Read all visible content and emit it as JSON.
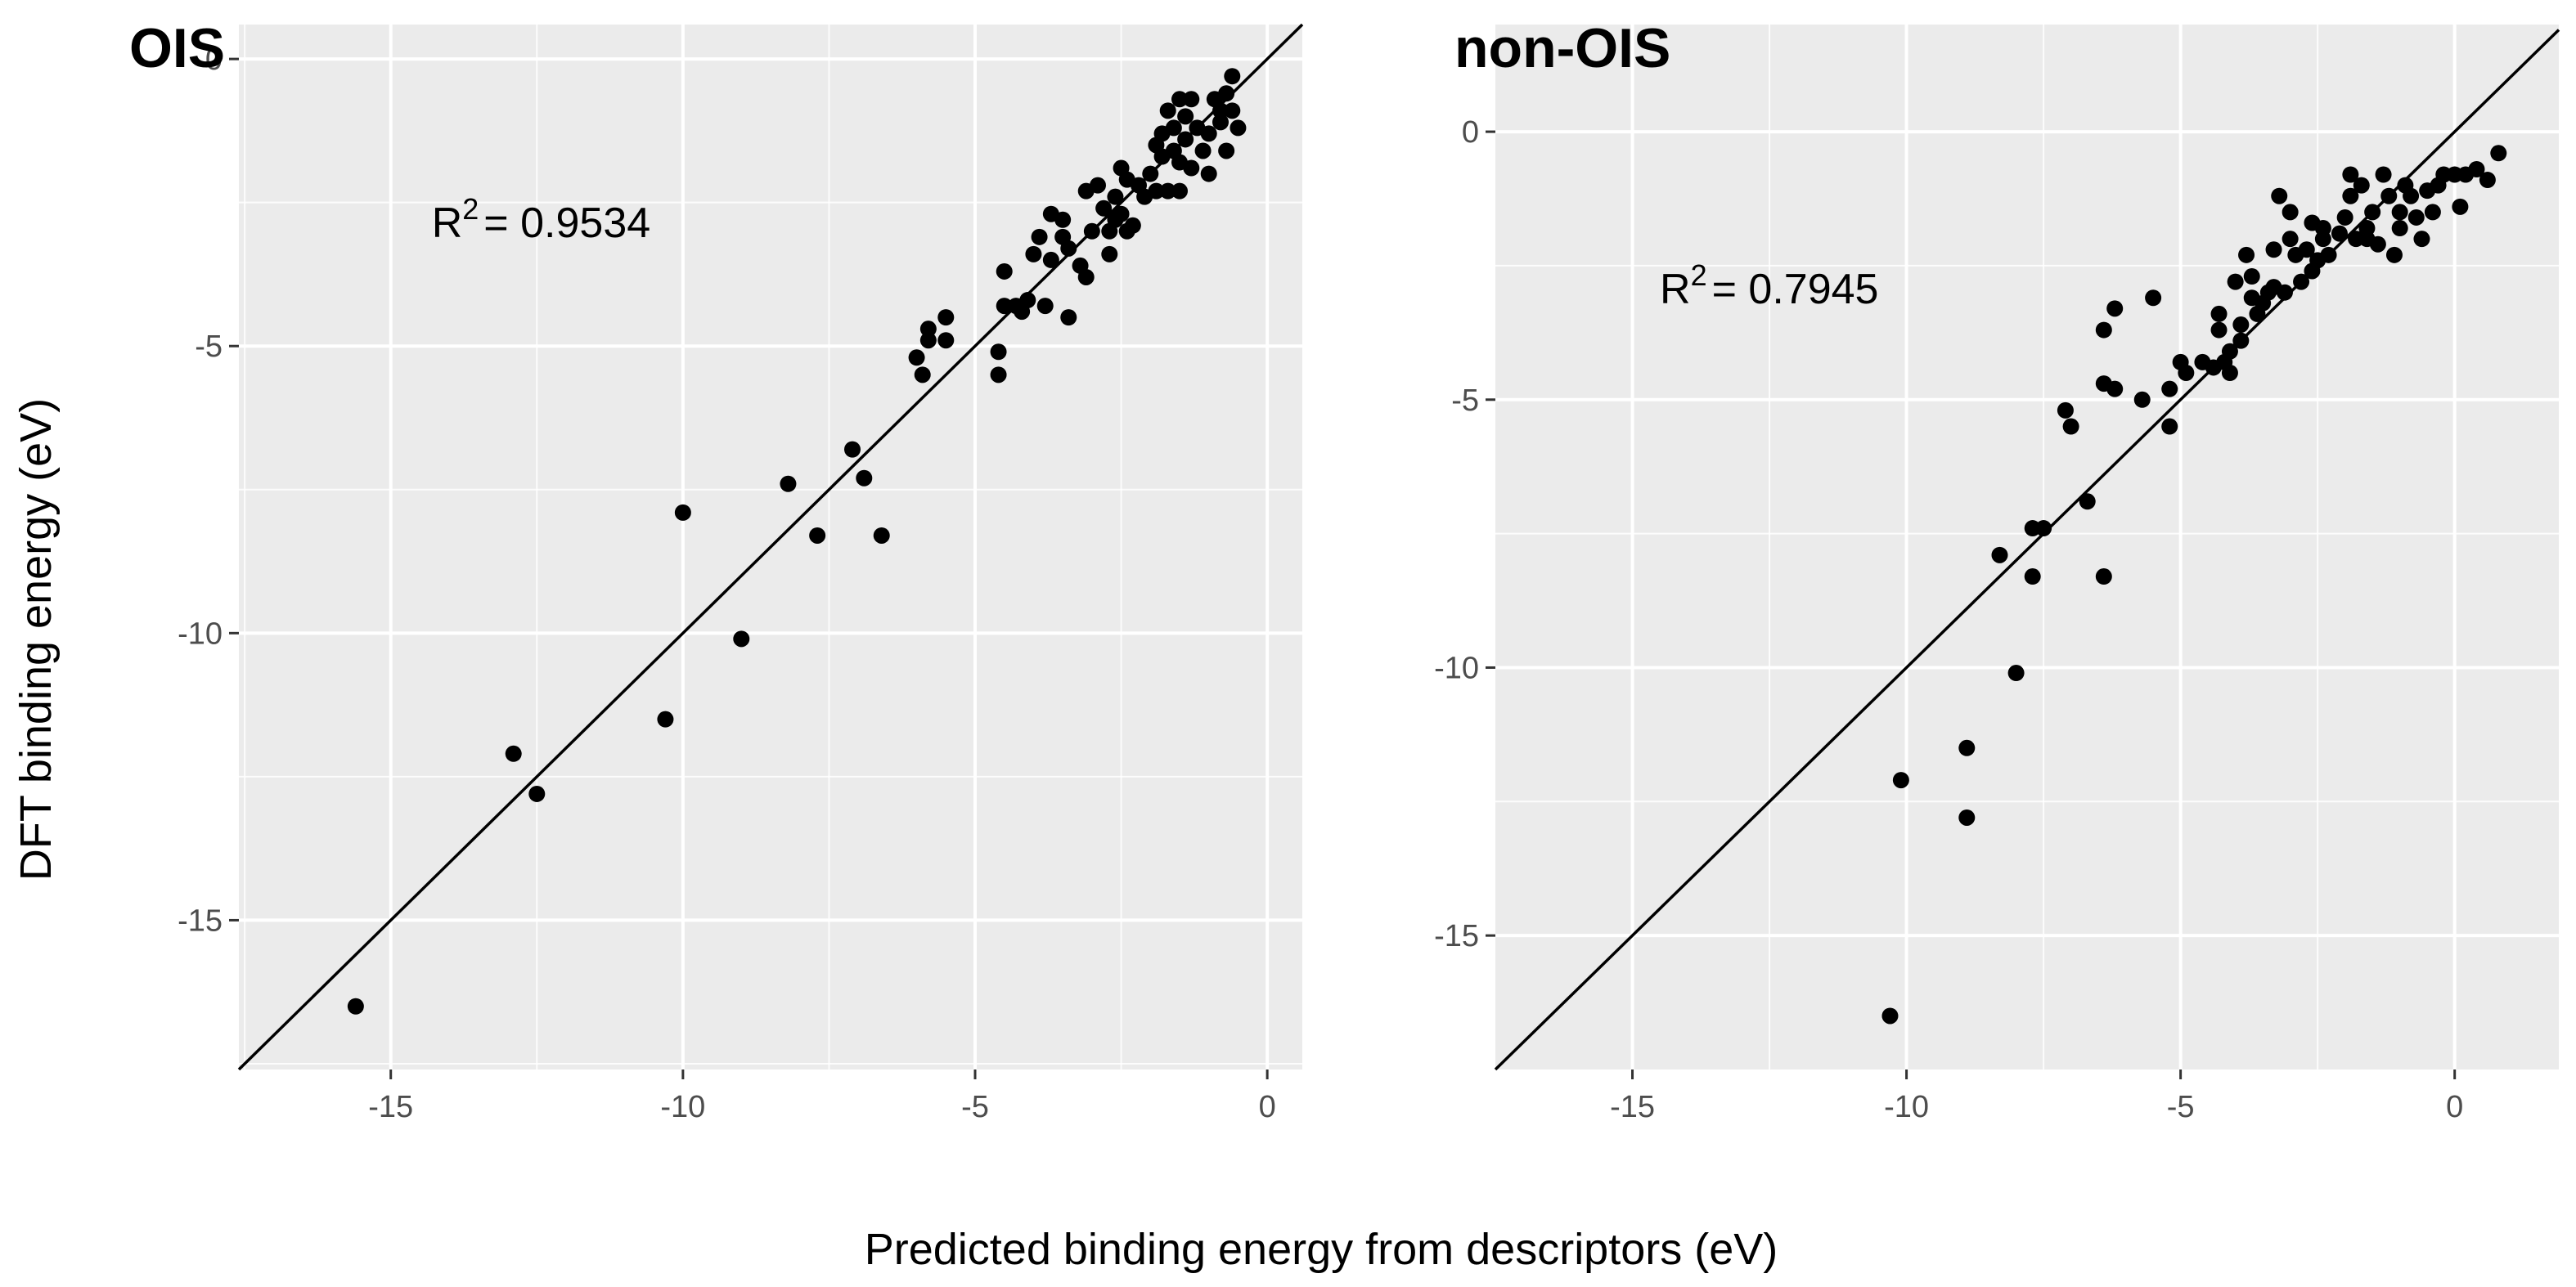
{
  "figure": {
    "ylabel": "DFT binding energy (eV)",
    "xlabel": "Predicted binding energy from descriptors (eV)"
  },
  "chart_data": [
    {
      "type": "scatter",
      "title": "OIS",
      "xlim": [
        -17.6,
        0.6
      ],
      "ylim": [
        -17.6,
        0.6
      ],
      "x_ticks": [
        -15,
        -10,
        -5,
        0
      ],
      "y_ticks": [
        -15,
        -10,
        -5,
        0
      ],
      "x_tick_labels": [
        "-15",
        "-10",
        "-5",
        "0"
      ],
      "y_tick_labels": [
        "-15",
        "-10",
        "-5",
        "0"
      ],
      "grid": true,
      "reference_line": "y = x",
      "annotation": {
        "r_label": "R",
        "sup": "2",
        "value": "= 0.9534",
        "x": -14.3,
        "y": -3.1
      },
      "points": [
        [
          -15.6,
          -16.5
        ],
        [
          -12.9,
          -12.1
        ],
        [
          -12.5,
          -12.8
        ],
        [
          -10.3,
          -11.5
        ],
        [
          -10.0,
          -7.9
        ],
        [
          -9.0,
          -10.1
        ],
        [
          -8.2,
          -7.4
        ],
        [
          -7.7,
          -8.3
        ],
        [
          -7.1,
          -6.8
        ],
        [
          -6.9,
          -7.3
        ],
        [
          -6.6,
          -8.3
        ],
        [
          -6.0,
          -5.2
        ],
        [
          -5.9,
          -5.5
        ],
        [
          -5.8,
          -4.7
        ],
        [
          -5.8,
          -4.9
        ],
        [
          -5.5,
          -4.5
        ],
        [
          -5.5,
          -4.9
        ],
        [
          -4.6,
          -5.1
        ],
        [
          -4.6,
          -5.5
        ],
        [
          -4.5,
          -3.7
        ],
        [
          -4.5,
          -4.3
        ],
        [
          -4.3,
          -4.3
        ],
        [
          -4.2,
          -4.4
        ],
        [
          -4.1,
          -4.2
        ],
        [
          -4.0,
          -3.4
        ],
        [
          -3.9,
          -3.1
        ],
        [
          -3.8,
          -4.3
        ],
        [
          -3.7,
          -2.7
        ],
        [
          -3.7,
          -3.5
        ],
        [
          -3.5,
          -3.1
        ],
        [
          -3.5,
          -2.8
        ],
        [
          -3.4,
          -4.5
        ],
        [
          -3.4,
          -3.3
        ],
        [
          -3.2,
          -3.6
        ],
        [
          -3.1,
          -3.8
        ],
        [
          -3.1,
          -2.3
        ],
        [
          -3.0,
          -3.0
        ],
        [
          -2.9,
          -2.2
        ],
        [
          -2.8,
          -2.6
        ],
        [
          -2.7,
          -3.0
        ],
        [
          -2.7,
          -3.4
        ],
        [
          -2.6,
          -2.4
        ],
        [
          -2.6,
          -2.8
        ],
        [
          -2.5,
          -1.9
        ],
        [
          -2.5,
          -2.7
        ],
        [
          -2.4,
          -3.0
        ],
        [
          -2.4,
          -2.1
        ],
        [
          -2.3,
          -2.9
        ],
        [
          -2.2,
          -2.2
        ],
        [
          -2.1,
          -2.4
        ],
        [
          -2.0,
          -2.0
        ],
        [
          -1.9,
          -1.5
        ],
        [
          -1.9,
          -2.3
        ],
        [
          -1.8,
          -1.7
        ],
        [
          -1.8,
          -1.3
        ],
        [
          -1.7,
          -0.9
        ],
        [
          -1.7,
          -2.3
        ],
        [
          -1.6,
          -1.2
        ],
        [
          -1.6,
          -1.6
        ],
        [
          -1.5,
          -1.8
        ],
        [
          -1.5,
          -2.3
        ],
        [
          -1.5,
          -0.7
        ],
        [
          -1.4,
          -1.4
        ],
        [
          -1.4,
          -1.0
        ],
        [
          -1.3,
          -0.7
        ],
        [
          -1.3,
          -1.9
        ],
        [
          -1.2,
          -1.2
        ],
        [
          -1.1,
          -1.6
        ],
        [
          -1.0,
          -2.0
        ],
        [
          -1.0,
          -1.3
        ],
        [
          -0.9,
          -0.7
        ],
        [
          -0.8,
          -1.1
        ],
        [
          -0.8,
          -0.9
        ],
        [
          -0.7,
          -1.6
        ],
        [
          -0.7,
          -0.6
        ],
        [
          -0.6,
          -0.3
        ],
        [
          -0.6,
          -0.9
        ],
        [
          -0.5,
          -1.2
        ]
      ]
    },
    {
      "type": "scatter",
      "title": "non-OIS",
      "xlim": [
        -17.5,
        1.9
      ],
      "ylim": [
        -17.5,
        2.0
      ],
      "x_ticks": [
        -15,
        -10,
        -5,
        0
      ],
      "y_ticks": [
        -15,
        -10,
        -5,
        0
      ],
      "x_tick_labels": [
        "-15",
        "-10",
        "-5",
        "0"
      ],
      "y_tick_labels": [
        "-15",
        "-10",
        "-5",
        "0"
      ],
      "grid": true,
      "reference_line": "y = x",
      "annotation": {
        "r_label": "R",
        "sup": "2",
        "value": "= 0.7945",
        "x": -14.5,
        "y": -3.2
      },
      "points": [
        [
          -10.3,
          -16.5
        ],
        [
          -10.1,
          -12.1
        ],
        [
          -8.9,
          -11.5
        ],
        [
          -8.9,
          -12.8
        ],
        [
          -8.3,
          -7.9
        ],
        [
          -8.0,
          -10.1
        ],
        [
          -7.7,
          -8.3
        ],
        [
          -7.7,
          -7.4
        ],
        [
          -7.5,
          -7.4
        ],
        [
          -7.1,
          -5.2
        ],
        [
          -7.0,
          -5.5
        ],
        [
          -6.7,
          -6.9
        ],
        [
          -6.4,
          -4.7
        ],
        [
          -6.4,
          -3.7
        ],
        [
          -6.4,
          -8.3
        ],
        [
          -6.2,
          -3.3
        ],
        [
          -6.2,
          -4.8
        ],
        [
          -5.7,
          -5.0
        ],
        [
          -5.5,
          -3.1
        ],
        [
          -5.2,
          -5.5
        ],
        [
          -5.2,
          -4.8
        ],
        [
          -5.0,
          -4.3
        ],
        [
          -4.9,
          -4.5
        ],
        [
          -4.6,
          -4.3
        ],
        [
          -4.4,
          -4.4
        ],
        [
          -4.3,
          -3.4
        ],
        [
          -4.3,
          -3.7
        ],
        [
          -4.2,
          -4.3
        ],
        [
          -4.1,
          -4.1
        ],
        [
          -4.1,
          -4.5
        ],
        [
          -4.0,
          -2.8
        ],
        [
          -3.9,
          -3.9
        ],
        [
          -3.9,
          -3.6
        ],
        [
          -3.8,
          -2.3
        ],
        [
          -3.7,
          -3.1
        ],
        [
          -3.7,
          -2.7
        ],
        [
          -3.6,
          -3.4
        ],
        [
          -3.5,
          -3.2
        ],
        [
          -3.4,
          -3.0
        ],
        [
          -3.3,
          -2.2
        ],
        [
          -3.3,
          -2.9
        ],
        [
          -3.2,
          -1.2
        ],
        [
          -3.1,
          -3.0
        ],
        [
          -3.0,
          -2.0
        ],
        [
          -3.0,
          -1.5
        ],
        [
          -2.9,
          -2.3
        ],
        [
          -2.8,
          -2.8
        ],
        [
          -2.7,
          -2.2
        ],
        [
          -2.6,
          -2.6
        ],
        [
          -2.6,
          -1.7
        ],
        [
          -2.5,
          -2.4
        ],
        [
          -2.4,
          -2.0
        ],
        [
          -2.4,
          -1.8
        ],
        [
          -2.3,
          -2.3
        ],
        [
          -2.1,
          -1.9
        ],
        [
          -2.0,
          -1.6
        ],
        [
          -1.9,
          -0.8
        ],
        [
          -1.9,
          -1.2
        ],
        [
          -1.8,
          -2.0
        ],
        [
          -1.7,
          -1.0
        ],
        [
          -1.6,
          -1.8
        ],
        [
          -1.6,
          -2.0
        ],
        [
          -1.5,
          -1.5
        ],
        [
          -1.4,
          -2.1
        ],
        [
          -1.3,
          -0.8
        ],
        [
          -1.2,
          -1.2
        ],
        [
          -1.1,
          -2.3
        ],
        [
          -1.0,
          -1.5
        ],
        [
          -1.0,
          -1.8
        ],
        [
          -0.9,
          -1.0
        ],
        [
          -0.8,
          -1.2
        ],
        [
          -0.7,
          -1.6
        ],
        [
          -0.6,
          -2.0
        ],
        [
          -0.5,
          -1.1
        ],
        [
          -0.4,
          -1.5
        ],
        [
          -0.3,
          -1.0
        ],
        [
          -0.2,
          -0.8
        ],
        [
          0.0,
          -0.8
        ],
        [
          0.1,
          -1.4
        ],
        [
          0.2,
          -0.8
        ],
        [
          0.4,
          -0.7
        ],
        [
          0.6,
          -0.9
        ],
        [
          0.8,
          -0.4
        ]
      ]
    }
  ]
}
